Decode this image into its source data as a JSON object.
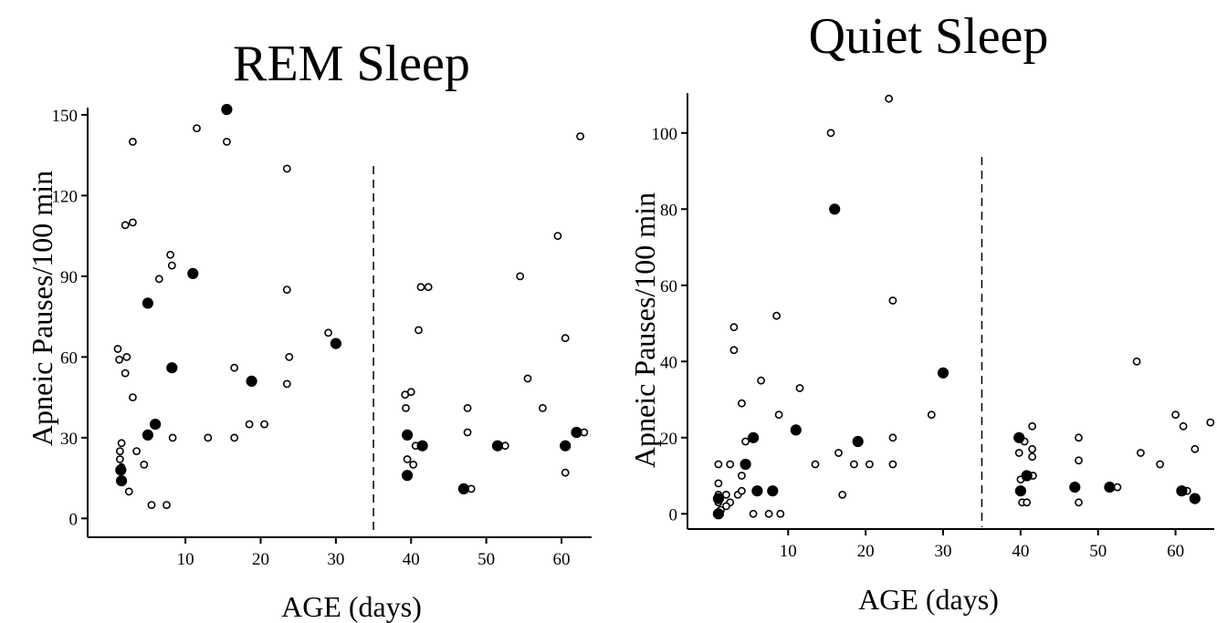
{
  "chart_data": [
    {
      "type": "scatter",
      "title": "REM Sleep",
      "xlabel": "AGE (days)",
      "ylabel": "Apneic Pauses/100 min",
      "xlim": [
        -3,
        64
      ],
      "ylim": [
        -7,
        152
      ],
      "xticks": [
        10,
        20,
        30,
        40,
        50,
        60
      ],
      "yticks": [
        0,
        30,
        60,
        90,
        120,
        150
      ],
      "divider_x": 35,
      "grid": false,
      "series": [
        {
          "marker": "open",
          "points": [
            [
              1.0,
              63
            ],
            [
              1.2,
              59
            ],
            [
              2.2,
              60
            ],
            [
              2.0,
              54
            ],
            [
              1.5,
              28
            ],
            [
              1.3,
              25
            ],
            [
              1.3,
              22
            ],
            [
              1.5,
              19
            ],
            [
              2.0,
              109
            ],
            [
              3.0,
              110
            ],
            [
              3.0,
              140
            ],
            [
              3.0,
              45
            ],
            [
              2.5,
              10
            ],
            [
              3.5,
              25
            ],
            [
              4.5,
              20
            ],
            [
              5.5,
              5
            ],
            [
              6.5,
              89
            ],
            [
              8.0,
              98
            ],
            [
              8.2,
              94
            ],
            [
              8.3,
              30
            ],
            [
              7.5,
              5
            ],
            [
              11.5,
              145
            ],
            [
              13.0,
              30
            ],
            [
              15.5,
              140
            ],
            [
              16.5,
              56
            ],
            [
              16.5,
              30
            ],
            [
              18.5,
              35
            ],
            [
              20.5,
              35
            ],
            [
              23.5,
              130
            ],
            [
              23.5,
              85
            ],
            [
              23.8,
              60
            ],
            [
              23.5,
              50
            ],
            [
              29.0,
              69
            ],
            [
              39.2,
              46
            ],
            [
              40.0,
              47
            ],
            [
              39.3,
              41
            ],
            [
              39.5,
              22
            ],
            [
              40.3,
              20
            ],
            [
              40.6,
              27
            ],
            [
              41.0,
              70
            ],
            [
              41.3,
              86
            ],
            [
              42.3,
              86
            ],
            [
              47.5,
              41
            ],
            [
              47.5,
              32
            ],
            [
              48.0,
              11
            ],
            [
              52.5,
              27
            ],
            [
              54.5,
              90
            ],
            [
              55.5,
              52
            ],
            [
              57.5,
              41
            ],
            [
              59.5,
              105
            ],
            [
              60.5,
              67
            ],
            [
              60.5,
              17
            ],
            [
              62.5,
              142
            ],
            [
              63.0,
              32
            ]
          ]
        },
        {
          "marker": "filled",
          "points": [
            [
              1.4,
              18
            ],
            [
              1.5,
              14
            ],
            [
              5.0,
              80
            ],
            [
              5.0,
              31
            ],
            [
              6.0,
              35
            ],
            [
              8.2,
              56
            ],
            [
              11.0,
              91
            ],
            [
              15.5,
              152
            ],
            [
              18.8,
              51
            ],
            [
              30.0,
              65
            ],
            [
              39.5,
              31
            ],
            [
              39.5,
              16
            ],
            [
              41.5,
              27
            ],
            [
              47.0,
              11
            ],
            [
              51.5,
              27
            ],
            [
              60.5,
              27
            ],
            [
              62.0,
              32
            ]
          ]
        }
      ]
    },
    {
      "type": "scatter",
      "title": "Quiet Sleep",
      "xlabel": "AGE (days)",
      "ylabel": "Apneic Pauses/100 min",
      "xlim": [
        -3,
        65
      ],
      "ylim": [
        -4,
        110
      ],
      "xticks": [
        10,
        20,
        30,
        40,
        50,
        60
      ],
      "yticks": [
        0,
        20,
        40,
        60,
        80,
        100
      ],
      "divider_x": 35,
      "grid": false,
      "series": [
        {
          "marker": "open",
          "points": [
            [
              1.0,
              13
            ],
            [
              1.0,
              8
            ],
            [
              1.0,
              5
            ],
            [
              1.0,
              3
            ],
            [
              1.3,
              1
            ],
            [
              2.0,
              5
            ],
            [
              2.5,
              3
            ],
            [
              2.0,
              2
            ],
            [
              2.5,
              13
            ],
            [
              3.0,
              49
            ],
            [
              3.0,
              43
            ],
            [
              3.5,
              5
            ],
            [
              4.0,
              10
            ],
            [
              4.0,
              29
            ],
            [
              4.0,
              6
            ],
            [
              4.5,
              19
            ],
            [
              5.5,
              0
            ],
            [
              6.5,
              35
            ],
            [
              7.5,
              0
            ],
            [
              8.5,
              52
            ],
            [
              8.8,
              26
            ],
            [
              9.0,
              0
            ],
            [
              11.5,
              33
            ],
            [
              13.5,
              13
            ],
            [
              15.5,
              100
            ],
            [
              16.5,
              16
            ],
            [
              17.0,
              5
            ],
            [
              18.5,
              13
            ],
            [
              20.5,
              13
            ],
            [
              23.0,
              109
            ],
            [
              23.5,
              56
            ],
            [
              23.5,
              20
            ],
            [
              23.5,
              13
            ],
            [
              28.5,
              26
            ],
            [
              39.8,
              16
            ],
            [
              40.0,
              9
            ],
            [
              40.0,
              6
            ],
            [
              40.2,
              3
            ],
            [
              40.5,
              19
            ],
            [
              40.8,
              3
            ],
            [
              41.5,
              23
            ],
            [
              41.5,
              17
            ],
            [
              41.5,
              15
            ],
            [
              41.6,
              10
            ],
            [
              47.5,
              20
            ],
            [
              47.5,
              14
            ],
            [
              47.5,
              3
            ],
            [
              52.5,
              7
            ],
            [
              55.0,
              40
            ],
            [
              55.5,
              16
            ],
            [
              58.0,
              13
            ],
            [
              60.0,
              26
            ],
            [
              61.0,
              23
            ],
            [
              61.5,
              6
            ],
            [
              62.5,
              17
            ],
            [
              64.5,
              24
            ]
          ]
        },
        {
          "marker": "filled",
          "points": [
            [
              1.0,
              4
            ],
            [
              1.0,
              0
            ],
            [
              4.5,
              13
            ],
            [
              5.5,
              20
            ],
            [
              6.0,
              6
            ],
            [
              8.0,
              6
            ],
            [
              11.0,
              22
            ],
            [
              16.0,
              80
            ],
            [
              19.0,
              19
            ],
            [
              30.0,
              37
            ],
            [
              39.8,
              20
            ],
            [
              40.0,
              6
            ],
            [
              40.8,
              10
            ],
            [
              47.0,
              7
            ],
            [
              51.5,
              7
            ],
            [
              60.8,
              6
            ],
            [
              62.5,
              4
            ]
          ]
        }
      ]
    }
  ]
}
